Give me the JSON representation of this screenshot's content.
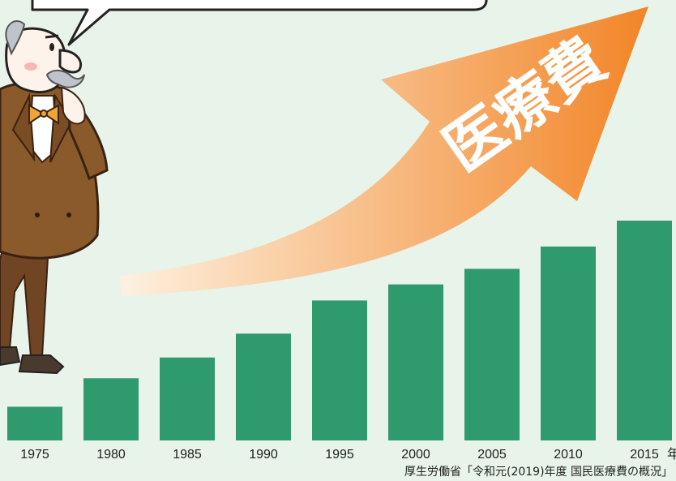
{
  "chart_data": {
    "type": "bar",
    "categories": [
      "1975",
      "1980",
      "1985",
      "1990",
      "1995",
      "2000",
      "2005",
      "2010",
      "2015"
    ],
    "values": [
      6.5,
      12.0,
      16.0,
      20.6,
      27.0,
      30.1,
      33.1,
      37.4,
      42.4
    ],
    "ylim": [
      0,
      42.4
    ],
    "year_unit": "年",
    "arrow_label": "医療費",
    "source": "厚生労働省「令和元(2019)年度 国民医療費の概況」",
    "grid": false,
    "legend": "none"
  },
  "colors": {
    "background": "#e8f3ea",
    "bar": "#2e9a6d",
    "arrow_start": "#fdf1e0",
    "arrow_end": "#f28527",
    "arrow_text": "#ffffff"
  },
  "illustration": {
    "character": "professor-character",
    "speech_bubble": "speech-bubble"
  }
}
